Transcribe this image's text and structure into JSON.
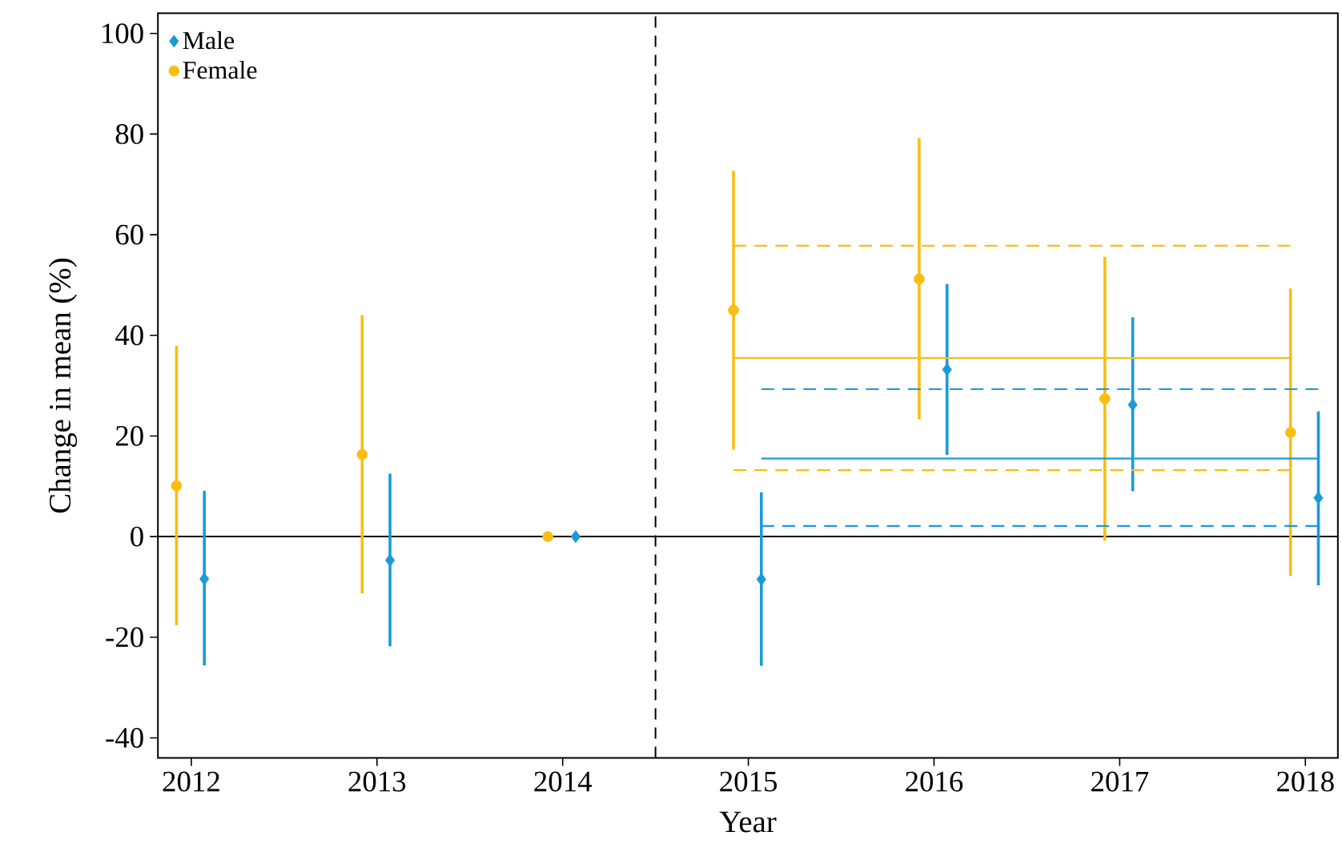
{
  "chart_data": {
    "type": "scatter",
    "xlabel": "Year",
    "ylabel": "Change in mean (%)",
    "xlim": [
      2011.82,
      2018.175
    ],
    "ylim": [
      -44,
      104
    ],
    "xticks": [
      2012,
      2013,
      2014,
      2015,
      2016,
      2017,
      2018
    ],
    "yticks": [
      -40,
      -20,
      0,
      20,
      40,
      60,
      80,
      100
    ],
    "grid": false,
    "legend": "top left",
    "series": [
      {
        "name": "Male",
        "marker": "diamond",
        "color": "#1a9ad6",
        "x": [
          2012.07,
          2013.07,
          2014.07,
          2015.07,
          2016.07,
          2017.07,
          2018.07
        ],
        "values": [
          -8.4,
          -4.7,
          0,
          -8.5,
          33.2,
          26.2,
          7.7
        ],
        "errors": [
          [
            -25.6,
            9.1
          ],
          [
            -21.8,
            12.5
          ],
          null,
          [
            -25.7,
            8.8
          ],
          [
            16.2,
            50.2
          ],
          [
            9.0,
            43.6
          ],
          [
            -9.7,
            24.9
          ]
        ]
      },
      {
        "name": "Female",
        "marker": "circle",
        "color": "#fbbd0f",
        "x": [
          2011.92,
          2012.92,
          2013.92,
          2014.92,
          2015.92,
          2016.92,
          2017.92
        ],
        "values": [
          10.1,
          16.3,
          0,
          45.0,
          51.2,
          27.4,
          20.7
        ],
        "errors": [
          [
            -17.6,
            37.9
          ],
          [
            -11.3,
            44.0
          ],
          null,
          [
            17.3,
            72.7
          ],
          [
            23.3,
            79.2
          ],
          [
            -0.8,
            55.6
          ],
          [
            -7.8,
            49.3
          ]
        ]
      },
      {
        "type": "line",
        "line_style": "solid",
        "color": "#fbbd0f",
        "x": [
          2014.92,
          2017.92
        ],
        "values": [
          35.5,
          35.5
        ]
      },
      {
        "type": "line",
        "line_style": "dashed",
        "color": "#fbbd0f",
        "x": [
          2014.92,
          2017.92
        ],
        "values": [
          57.8,
          57.8
        ]
      },
      {
        "type": "line",
        "line_style": "dashed",
        "color": "#fbbd0f",
        "x": [
          2014.92,
          2017.92
        ],
        "values": [
          13.2,
          13.2
        ]
      },
      {
        "type": "line",
        "line_style": "solid",
        "color": "#1a9ad6",
        "x": [
          2015.07,
          2018.07
        ],
        "values": [
          15.5,
          15.5
        ]
      },
      {
        "type": "line",
        "line_style": "dashed",
        "color": "#1a9ad6",
        "x": [
          2015.07,
          2018.07
        ],
        "values": [
          29.3,
          29.3
        ]
      },
      {
        "type": "line",
        "line_style": "dashed",
        "color": "#1a9ad6",
        "x": [
          2015.07,
          2018.07
        ],
        "values": [
          2.1,
          2.1
        ]
      }
    ],
    "ref_lines": [
      {
        "axis": "y",
        "value": 0,
        "color": "#000000",
        "line_style": "solid"
      },
      {
        "axis": "x",
        "value": 2014.5,
        "color": "#000000",
        "line_style": "dashed"
      }
    ]
  }
}
